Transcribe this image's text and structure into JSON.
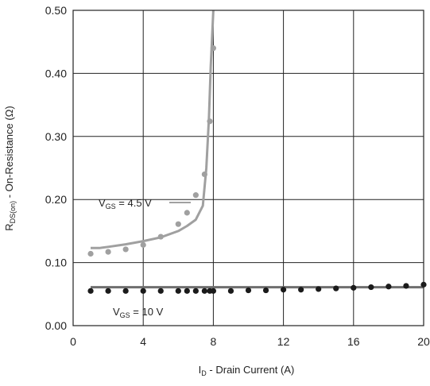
{
  "chart_data": {
    "type": "scatter",
    "xlabel": {
      "main": "I",
      "sub": "D",
      "rest": " - Drain Current (A)"
    },
    "ylabel": {
      "main": "R",
      "sub": "DS(on)",
      "rest": " - On-Resistance (Ω)"
    },
    "xlim": [
      0,
      20
    ],
    "ylim": [
      0,
      0.5
    ],
    "x_ticks": [
      "0",
      "4",
      "8",
      "12",
      "16",
      "20"
    ],
    "y_ticks": [
      "0.00",
      "0.10",
      "0.20",
      "0.30",
      "0.40",
      "0.50"
    ],
    "grid": true,
    "colors": {
      "vgs45": "#a0a0a0",
      "vgs10": "#1a1a1a",
      "vgs10_line": "#6e6e6e",
      "grid": "#222222"
    },
    "series": [
      {
        "label_main": "V",
        "label_sub": "GS",
        "label_rest": " = 4.5 V",
        "color_key": "vgs45",
        "points": [
          [
            1,
            0.114
          ],
          [
            2,
            0.117
          ],
          [
            3,
            0.121
          ],
          [
            4,
            0.128
          ],
          [
            5,
            0.141
          ],
          [
            6,
            0.161
          ],
          [
            6.5,
            0.179
          ],
          [
            7,
            0.207
          ],
          [
            7.5,
            0.24
          ],
          [
            7.8,
            0.324
          ],
          [
            8,
            0.44
          ]
        ],
        "curve": [
          [
            1,
            0.123
          ],
          [
            1.5,
            0.123
          ],
          [
            2,
            0.125
          ],
          [
            3,
            0.129
          ],
          [
            4,
            0.134
          ],
          [
            5,
            0.14
          ],
          [
            6,
            0.15
          ],
          [
            6.5,
            0.158
          ],
          [
            7,
            0.168
          ],
          [
            7.4,
            0.19
          ],
          [
            7.6,
            0.25
          ],
          [
            7.75,
            0.33
          ],
          [
            7.85,
            0.41
          ],
          [
            7.95,
            0.47
          ],
          [
            8.0,
            0.5
          ]
        ]
      },
      {
        "label_main": "V",
        "label_sub": "GS",
        "label_rest": " = 10 V",
        "color_key": "vgs10",
        "line_color_key": "vgs10_line",
        "points": [
          [
            1,
            0.055
          ],
          [
            2,
            0.055
          ],
          [
            3,
            0.055
          ],
          [
            4,
            0.055
          ],
          [
            5,
            0.055
          ],
          [
            6,
            0.055
          ],
          [
            6.5,
            0.055
          ],
          [
            7,
            0.055
          ],
          [
            7.5,
            0.055
          ],
          [
            7.8,
            0.055
          ],
          [
            8,
            0.055
          ],
          [
            9,
            0.055
          ],
          [
            10,
            0.056
          ],
          [
            11,
            0.056
          ],
          [
            12,
            0.057
          ],
          [
            13,
            0.057
          ],
          [
            14,
            0.058
          ],
          [
            15,
            0.059
          ],
          [
            16,
            0.06
          ],
          [
            17,
            0.061
          ],
          [
            18,
            0.062
          ],
          [
            19,
            0.063
          ],
          [
            20,
            0.065
          ]
        ],
        "curve": [
          [
            1,
            0.061
          ],
          [
            20,
            0.061
          ]
        ]
      }
    ]
  }
}
